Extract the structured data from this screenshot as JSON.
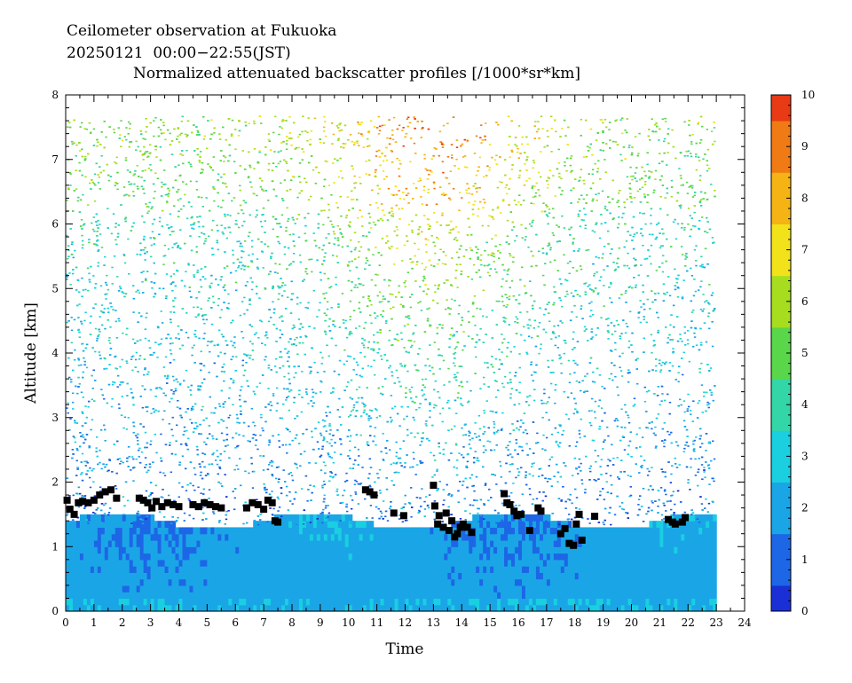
{
  "header": {
    "station_line": "Ceilometer observation at Fukuoka",
    "date_line": "20250121  00:00−22:55(JST)",
    "product_line": "Normalized attenuated backscatter profiles [/1000*sr*km]"
  },
  "chart_data": {
    "type": "heatmap",
    "title": "Normalized attenuated backscatter profiles [/1000*sr*km]",
    "xlabel": "Time",
    "ylabel": "Altitude [km]",
    "xlim": [
      0,
      24
    ],
    "ylim": [
      0,
      8
    ],
    "x_ticks": [
      "0",
      "1",
      "2",
      "3",
      "4",
      "5",
      "6",
      "7",
      "8",
      "9",
      "10",
      "11",
      "12",
      "13",
      "14",
      "15",
      "16",
      "17",
      "18",
      "19",
      "20",
      "21",
      "22",
      "23",
      "24"
    ],
    "y_ticks": [
      "0",
      "1",
      "2",
      "3",
      "4",
      "5",
      "6",
      "7",
      "8"
    ],
    "data_extent": {
      "x_end": 22.92,
      "y_end": 7.68
    },
    "colorbar": {
      "range": [
        0,
        10
      ],
      "ticks": [
        "0",
        "1",
        "2",
        "3",
        "4",
        "5",
        "6",
        "7",
        "8",
        "9",
        "10"
      ],
      "colors": [
        "#1a2fd6",
        "#1d66e6",
        "#1aa6e6",
        "#19cfe0",
        "#33d6a6",
        "#5ad64a",
        "#a6dd1f",
        "#f2e21a",
        "#f5b414",
        "#f07a14",
        "#e83a14"
      ]
    },
    "cloud_base_points": [
      [
        0.05,
        1.72
      ],
      [
        0.15,
        1.58
      ],
      [
        0.3,
        1.5
      ],
      [
        0.45,
        1.68
      ],
      [
        0.6,
        1.7
      ],
      [
        0.8,
        1.68
      ],
      [
        1.0,
        1.72
      ],
      [
        1.2,
        1.8
      ],
      [
        1.4,
        1.85
      ],
      [
        1.6,
        1.88
      ],
      [
        1.8,
        1.75
      ],
      [
        2.6,
        1.75
      ],
      [
        2.75,
        1.72
      ],
      [
        2.9,
        1.68
      ],
      [
        3.05,
        1.6
      ],
      [
        3.2,
        1.7
      ],
      [
        3.4,
        1.62
      ],
      [
        3.6,
        1.68
      ],
      [
        3.8,
        1.65
      ],
      [
        4.0,
        1.62
      ],
      [
        4.5,
        1.65
      ],
      [
        4.7,
        1.62
      ],
      [
        4.9,
        1.68
      ],
      [
        5.1,
        1.65
      ],
      [
        5.3,
        1.62
      ],
      [
        5.5,
        1.6
      ],
      [
        6.4,
        1.6
      ],
      [
        6.6,
        1.68
      ],
      [
        6.8,
        1.65
      ],
      [
        7.0,
        1.58
      ],
      [
        7.15,
        1.72
      ],
      [
        7.3,
        1.68
      ],
      [
        7.4,
        1.4
      ],
      [
        7.5,
        1.38
      ],
      [
        10.6,
        1.88
      ],
      [
        10.75,
        1.85
      ],
      [
        10.9,
        1.8
      ],
      [
        11.6,
        1.52
      ],
      [
        11.95,
        1.48
      ],
      [
        13.0,
        1.95
      ],
      [
        13.05,
        1.63
      ],
      [
        13.15,
        1.35
      ],
      [
        13.2,
        1.48
      ],
      [
        13.35,
        1.3
      ],
      [
        13.45,
        1.52
      ],
      [
        13.55,
        1.25
      ],
      [
        13.65,
        1.4
      ],
      [
        13.75,
        1.15
      ],
      [
        13.85,
        1.2
      ],
      [
        13.95,
        1.3
      ],
      [
        14.05,
        1.35
      ],
      [
        14.2,
        1.3
      ],
      [
        14.35,
        1.22
      ],
      [
        15.5,
        1.82
      ],
      [
        15.6,
        1.68
      ],
      [
        15.7,
        1.65
      ],
      [
        15.85,
        1.55
      ],
      [
        15.95,
        1.48
      ],
      [
        16.1,
        1.5
      ],
      [
        16.4,
        1.25
      ],
      [
        16.7,
        1.6
      ],
      [
        16.8,
        1.55
      ],
      [
        17.5,
        1.2
      ],
      [
        17.65,
        1.28
      ],
      [
        17.8,
        1.05
      ],
      [
        17.95,
        1.02
      ],
      [
        18.05,
        1.35
      ],
      [
        18.15,
        1.5
      ],
      [
        18.25,
        1.1
      ],
      [
        18.7,
        1.47
      ],
      [
        21.3,
        1.42
      ],
      [
        21.45,
        1.38
      ],
      [
        21.55,
        1.35
      ],
      [
        21.8,
        1.38
      ],
      [
        21.9,
        1.45
      ]
    ]
  }
}
